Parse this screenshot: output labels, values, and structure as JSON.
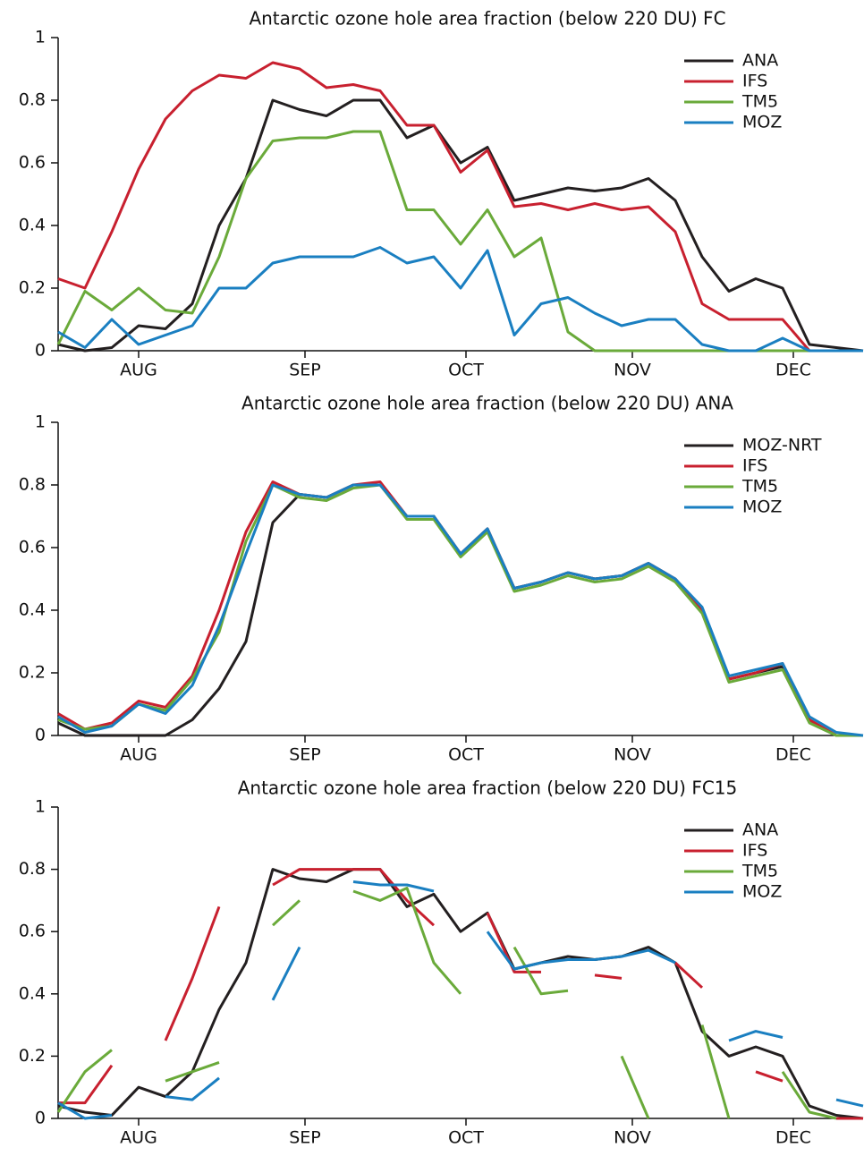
{
  "chart_data": [
    {
      "type": "line",
      "title": "Antarctic ozone hole area fraction (below 220 DU) FC",
      "x": [
        213,
        218,
        223,
        228,
        233,
        238,
        243,
        248,
        253,
        258,
        263,
        268,
        273,
        278,
        283,
        288,
        293,
        298,
        303,
        308,
        313,
        318,
        323,
        328,
        333,
        338,
        343,
        348,
        353,
        358,
        363
      ],
      "xlim": [
        213,
        363
      ],
      "xticks": [
        {
          "value": 228,
          "label": "AUG"
        },
        {
          "value": 259,
          "label": "SEP"
        },
        {
          "value": 289,
          "label": "OCT"
        },
        {
          "value": 320,
          "label": "NOV"
        },
        {
          "value": 350,
          "label": "DEC"
        }
      ],
      "ylim": [
        0,
        1
      ],
      "yticks": [
        0,
        0.2,
        0.4,
        0.6,
        0.8,
        1
      ],
      "legend": "upper right",
      "series": [
        {
          "name": "ANA",
          "color": "#231f20",
          "values": [
            0.02,
            0.0,
            0.01,
            0.08,
            0.07,
            0.15,
            0.4,
            0.55,
            0.8,
            0.77,
            0.75,
            0.8,
            0.8,
            0.68,
            0.72,
            0.6,
            0.65,
            0.48,
            0.5,
            0.52,
            0.51,
            0.52,
            0.55,
            0.48,
            0.3,
            0.19,
            0.23,
            0.2,
            0.02,
            0.01,
            0.0
          ]
        },
        {
          "name": "IFS",
          "color": "#c8202f",
          "values": [
            0.23,
            0.2,
            0.38,
            0.58,
            0.74,
            0.83,
            0.88,
            0.87,
            0.92,
            0.9,
            0.84,
            0.85,
            0.83,
            0.72,
            0.72,
            0.57,
            0.64,
            0.46,
            0.47,
            0.45,
            0.47,
            0.45,
            0.46,
            0.38,
            0.15,
            0.1,
            0.1,
            0.1,
            0.0,
            0.0,
            0.0
          ]
        },
        {
          "name": "TM5",
          "color": "#6aaa3a",
          "values": [
            0.02,
            0.19,
            0.13,
            0.2,
            0.13,
            0.12,
            0.3,
            0.55,
            0.67,
            0.68,
            0.68,
            0.7,
            0.7,
            0.45,
            0.45,
            0.34,
            0.45,
            0.3,
            0.36,
            0.06,
            0.0,
            0.0,
            0.0,
            0.0,
            0.0,
            0.0,
            0.0,
            0.0,
            0.0,
            0.0,
            0.0
          ]
        },
        {
          "name": "MOZ",
          "color": "#1a7fc1",
          "values": [
            0.06,
            0.01,
            0.1,
            0.02,
            0.05,
            0.08,
            0.2,
            0.2,
            0.28,
            0.3,
            0.3,
            0.3,
            0.33,
            0.28,
            0.3,
            0.2,
            0.32,
            0.05,
            0.15,
            0.17,
            0.12,
            0.08,
            0.1,
            0.1,
            0.02,
            0.0,
            0.0,
            0.04,
            0.0,
            0.0,
            0.0
          ]
        }
      ]
    },
    {
      "type": "line",
      "title": "Antarctic ozone hole area fraction (below 220 DU) ANA",
      "x": [
        213,
        218,
        223,
        228,
        233,
        238,
        243,
        248,
        253,
        258,
        263,
        268,
        273,
        278,
        283,
        288,
        293,
        298,
        303,
        308,
        313,
        318,
        323,
        328,
        333,
        338,
        343,
        348,
        353,
        358,
        363
      ],
      "xlim": [
        213,
        363
      ],
      "xticks": [
        {
          "value": 228,
          "label": "AUG"
        },
        {
          "value": 259,
          "label": "SEP"
        },
        {
          "value": 289,
          "label": "OCT"
        },
        {
          "value": 320,
          "label": "NOV"
        },
        {
          "value": 350,
          "label": "DEC"
        }
      ],
      "ylim": [
        0,
        1
      ],
      "yticks": [
        0,
        0.2,
        0.4,
        0.6,
        0.8,
        1
      ],
      "legend": "upper right",
      "series": [
        {
          "name": "MOZ-NRT",
          "color": "#231f20",
          "values": [
            0.04,
            0.0,
            0.0,
            0.0,
            0.0,
            0.05,
            0.15,
            0.3,
            0.68,
            0.77,
            0.76,
            0.8,
            0.8,
            0.7,
            0.7,
            0.58,
            0.66,
            0.47,
            0.49,
            0.52,
            0.5,
            0.51,
            0.55,
            0.5,
            0.4,
            0.18,
            0.2,
            0.22,
            0.05,
            0.0,
            0.0
          ]
        },
        {
          "name": "IFS",
          "color": "#c8202f",
          "values": [
            0.07,
            0.02,
            0.04,
            0.11,
            0.09,
            0.19,
            0.4,
            0.65,
            0.81,
            0.77,
            0.76,
            0.8,
            0.81,
            0.7,
            0.7,
            0.58,
            0.66,
            0.47,
            0.49,
            0.52,
            0.5,
            0.51,
            0.55,
            0.5,
            0.4,
            0.18,
            0.2,
            0.23,
            0.05,
            0.0,
            0.0
          ]
        },
        {
          "name": "TM5",
          "color": "#6aaa3a",
          "values": [
            0.05,
            0.02,
            0.03,
            0.1,
            0.08,
            0.18,
            0.33,
            0.62,
            0.8,
            0.76,
            0.75,
            0.79,
            0.8,
            0.69,
            0.69,
            0.57,
            0.65,
            0.46,
            0.48,
            0.51,
            0.49,
            0.5,
            0.54,
            0.49,
            0.39,
            0.17,
            0.19,
            0.21,
            0.04,
            0.0,
            0.0
          ]
        },
        {
          "name": "MOZ",
          "color": "#1a7fc1",
          "values": [
            0.06,
            0.01,
            0.03,
            0.1,
            0.07,
            0.16,
            0.35,
            0.58,
            0.8,
            0.77,
            0.76,
            0.8,
            0.8,
            0.7,
            0.7,
            0.58,
            0.66,
            0.47,
            0.49,
            0.52,
            0.5,
            0.51,
            0.55,
            0.5,
            0.41,
            0.19,
            0.21,
            0.23,
            0.06,
            0.01,
            0.0
          ]
        }
      ]
    },
    {
      "type": "line",
      "title": "Antarctic ozone hole area fraction (below 220 DU) FC15",
      "x": [
        213,
        218,
        223,
        228,
        233,
        238,
        243,
        248,
        253,
        258,
        263,
        268,
        273,
        278,
        283,
        288,
        293,
        298,
        303,
        308,
        313,
        318,
        323,
        328,
        333,
        338,
        343,
        348,
        353,
        358,
        363
      ],
      "xlim": [
        213,
        363
      ],
      "xticks": [
        {
          "value": 228,
          "label": "AUG"
        },
        {
          "value": 259,
          "label": "SEP"
        },
        {
          "value": 289,
          "label": "OCT"
        },
        {
          "value": 320,
          "label": "NOV"
        },
        {
          "value": 350,
          "label": "DEC"
        }
      ],
      "ylim": [
        0,
        1
      ],
      "yticks": [
        0,
        0.2,
        0.4,
        0.6,
        0.8,
        1
      ],
      "legend": "upper right",
      "series": [
        {
          "name": "ANA",
          "color": "#231f20",
          "values": [
            0.04,
            0.02,
            0.01,
            0.1,
            0.07,
            0.15,
            0.35,
            0.5,
            0.8,
            0.77,
            0.76,
            0.8,
            0.8,
            0.68,
            0.72,
            0.6,
            0.66,
            0.48,
            0.5,
            0.52,
            0.51,
            0.52,
            0.55,
            0.5,
            0.28,
            0.2,
            0.23,
            0.2,
            0.04,
            0.01,
            0.0
          ]
        },
        {
          "name": "IFS",
          "color": "#c8202f",
          "values": [
            0.05,
            0.05,
            0.17,
            null,
            0.25,
            0.45,
            0.68,
            null,
            0.75,
            0.8,
            0.8,
            0.8,
            0.8,
            0.7,
            0.62,
            null,
            0.66,
            0.47,
            0.47,
            null,
            0.46,
            0.45,
            null,
            0.5,
            0.42,
            null,
            0.15,
            0.12,
            null,
            0.0,
            0.0
          ]
        },
        {
          "name": "TM5",
          "color": "#6aaa3a",
          "values": [
            0.02,
            0.15,
            0.22,
            null,
            0.12,
            0.15,
            0.18,
            null,
            0.62,
            0.7,
            null,
            0.73,
            0.7,
            0.74,
            0.5,
            0.4,
            null,
            0.55,
            0.4,
            0.41,
            null,
            0.2,
            0.0,
            null,
            0.3,
            0.0,
            null,
            0.15,
            0.02,
            0.0,
            null
          ]
        },
        {
          "name": "MOZ",
          "color": "#1a7fc1",
          "values": [
            0.05,
            0.0,
            0.01,
            null,
            0.07,
            0.06,
            0.13,
            null,
            0.38,
            0.55,
            null,
            0.76,
            0.75,
            0.75,
            0.73,
            null,
            0.6,
            0.48,
            0.5,
            0.51,
            0.51,
            0.52,
            0.54,
            0.5,
            null,
            0.25,
            0.28,
            0.26,
            null,
            0.06,
            0.04
          ]
        }
      ]
    }
  ]
}
